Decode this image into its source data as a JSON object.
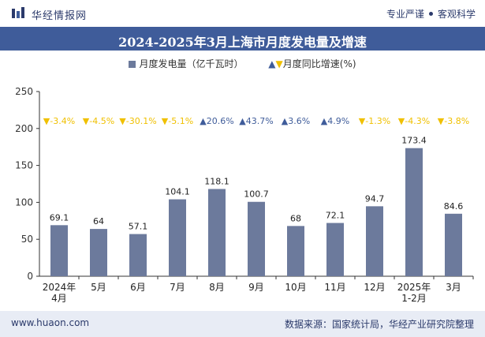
{
  "header": {
    "brand": "华经情报网",
    "tag1": "专业严谨",
    "tag2": "客观科学"
  },
  "title": "2024-2025年3月上海市月度发电量及增速",
  "legend": {
    "bar_label": "月度发电量（亿千瓦时）",
    "growth_label": "月度同比增速(%)"
  },
  "footer": {
    "website": "www.huaon.com",
    "source": "数据来源：国家统计局，华经产业研究院整理"
  },
  "colors": {
    "bar": "#6c7a9c",
    "up": "#3f5c9a",
    "down": "#f0c000",
    "title_bg": "#3f5c9a"
  },
  "chart_data": {
    "type": "bar",
    "categories": [
      "2024年\n4月",
      "5月",
      "6月",
      "7月",
      "8月",
      "9月",
      "10月",
      "11月",
      "12月",
      "2025年\n1-2月",
      "3月"
    ],
    "series": [
      {
        "name": "月度发电量（亿千瓦时）",
        "values": [
          69.1,
          64,
          57.1,
          104.1,
          118.1,
          100.7,
          68,
          72.1,
          94.7,
          173.4,
          84.6
        ]
      }
    ],
    "growth": [
      {
        "label": "-3.4%",
        "dir": "down"
      },
      {
        "label": "-4.5%",
        "dir": "down"
      },
      {
        "label": "-30.1%",
        "dir": "down"
      },
      {
        "label": "-5.1%",
        "dir": "down"
      },
      {
        "label": "20.6%",
        "dir": "up"
      },
      {
        "label": "43.7%",
        "dir": "up"
      },
      {
        "label": "3.6%",
        "dir": "up"
      },
      {
        "label": "4.9%",
        "dir": "up"
      },
      {
        "label": "-1.3%",
        "dir": "down"
      },
      {
        "label": "-4.3%",
        "dir": "down"
      },
      {
        "label": "-3.8%",
        "dir": "down"
      }
    ],
    "yticks": [
      0,
      50,
      100,
      150,
      200,
      250
    ],
    "ylim": [
      0,
      250
    ],
    "grid": false,
    "legend_position": "top"
  }
}
